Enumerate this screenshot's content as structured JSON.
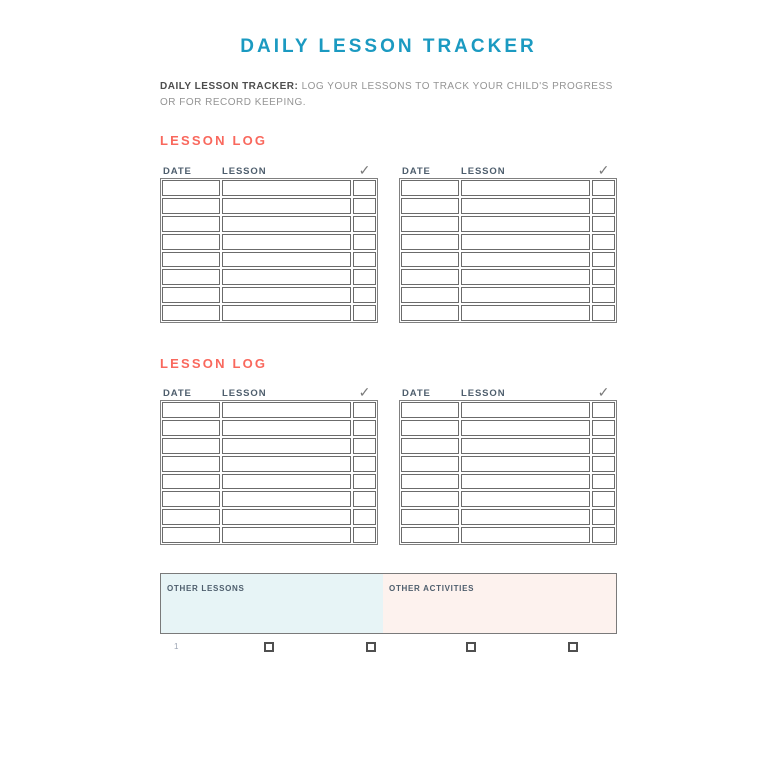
{
  "page": {
    "title": "DAILY LESSON TRACKER",
    "intro_lead": "DAILY LESSON TRACKER:",
    "intro_rest": " LOG YOUR LESSONS TO TRACK YOUR CHILD'S PROGRESS OR FOR RECORD KEEPING."
  },
  "sections": [
    {
      "heading": "LESSON LOG"
    },
    {
      "heading": "LESSON LOG"
    }
  ],
  "table": {
    "columns": [
      "DATE",
      "LESSON"
    ],
    "check_icon": "✓",
    "rows_per_table": 8,
    "tables_per_section": 2
  },
  "other": {
    "lessons_label": "OTHER LESSONS",
    "activities_label": "OTHER ACTIVITIES"
  },
  "footer": {
    "page_number": "1",
    "checkbox_count": 4
  },
  "colors": {
    "title": "#1b9ac1",
    "section_heading": "#f9685d",
    "intro_lead": "#4d4d4d",
    "intro_text": "#949494",
    "table_header_text": "#4e5e6d",
    "table_border": "#6b6b6b",
    "table_outer_border": "#808080",
    "check_icon": "#7b7b7b",
    "other_lessons_bg": "#e7f4f6",
    "other_activities_bg": "#fdf2ee",
    "page_bg": "#ffffff"
  }
}
